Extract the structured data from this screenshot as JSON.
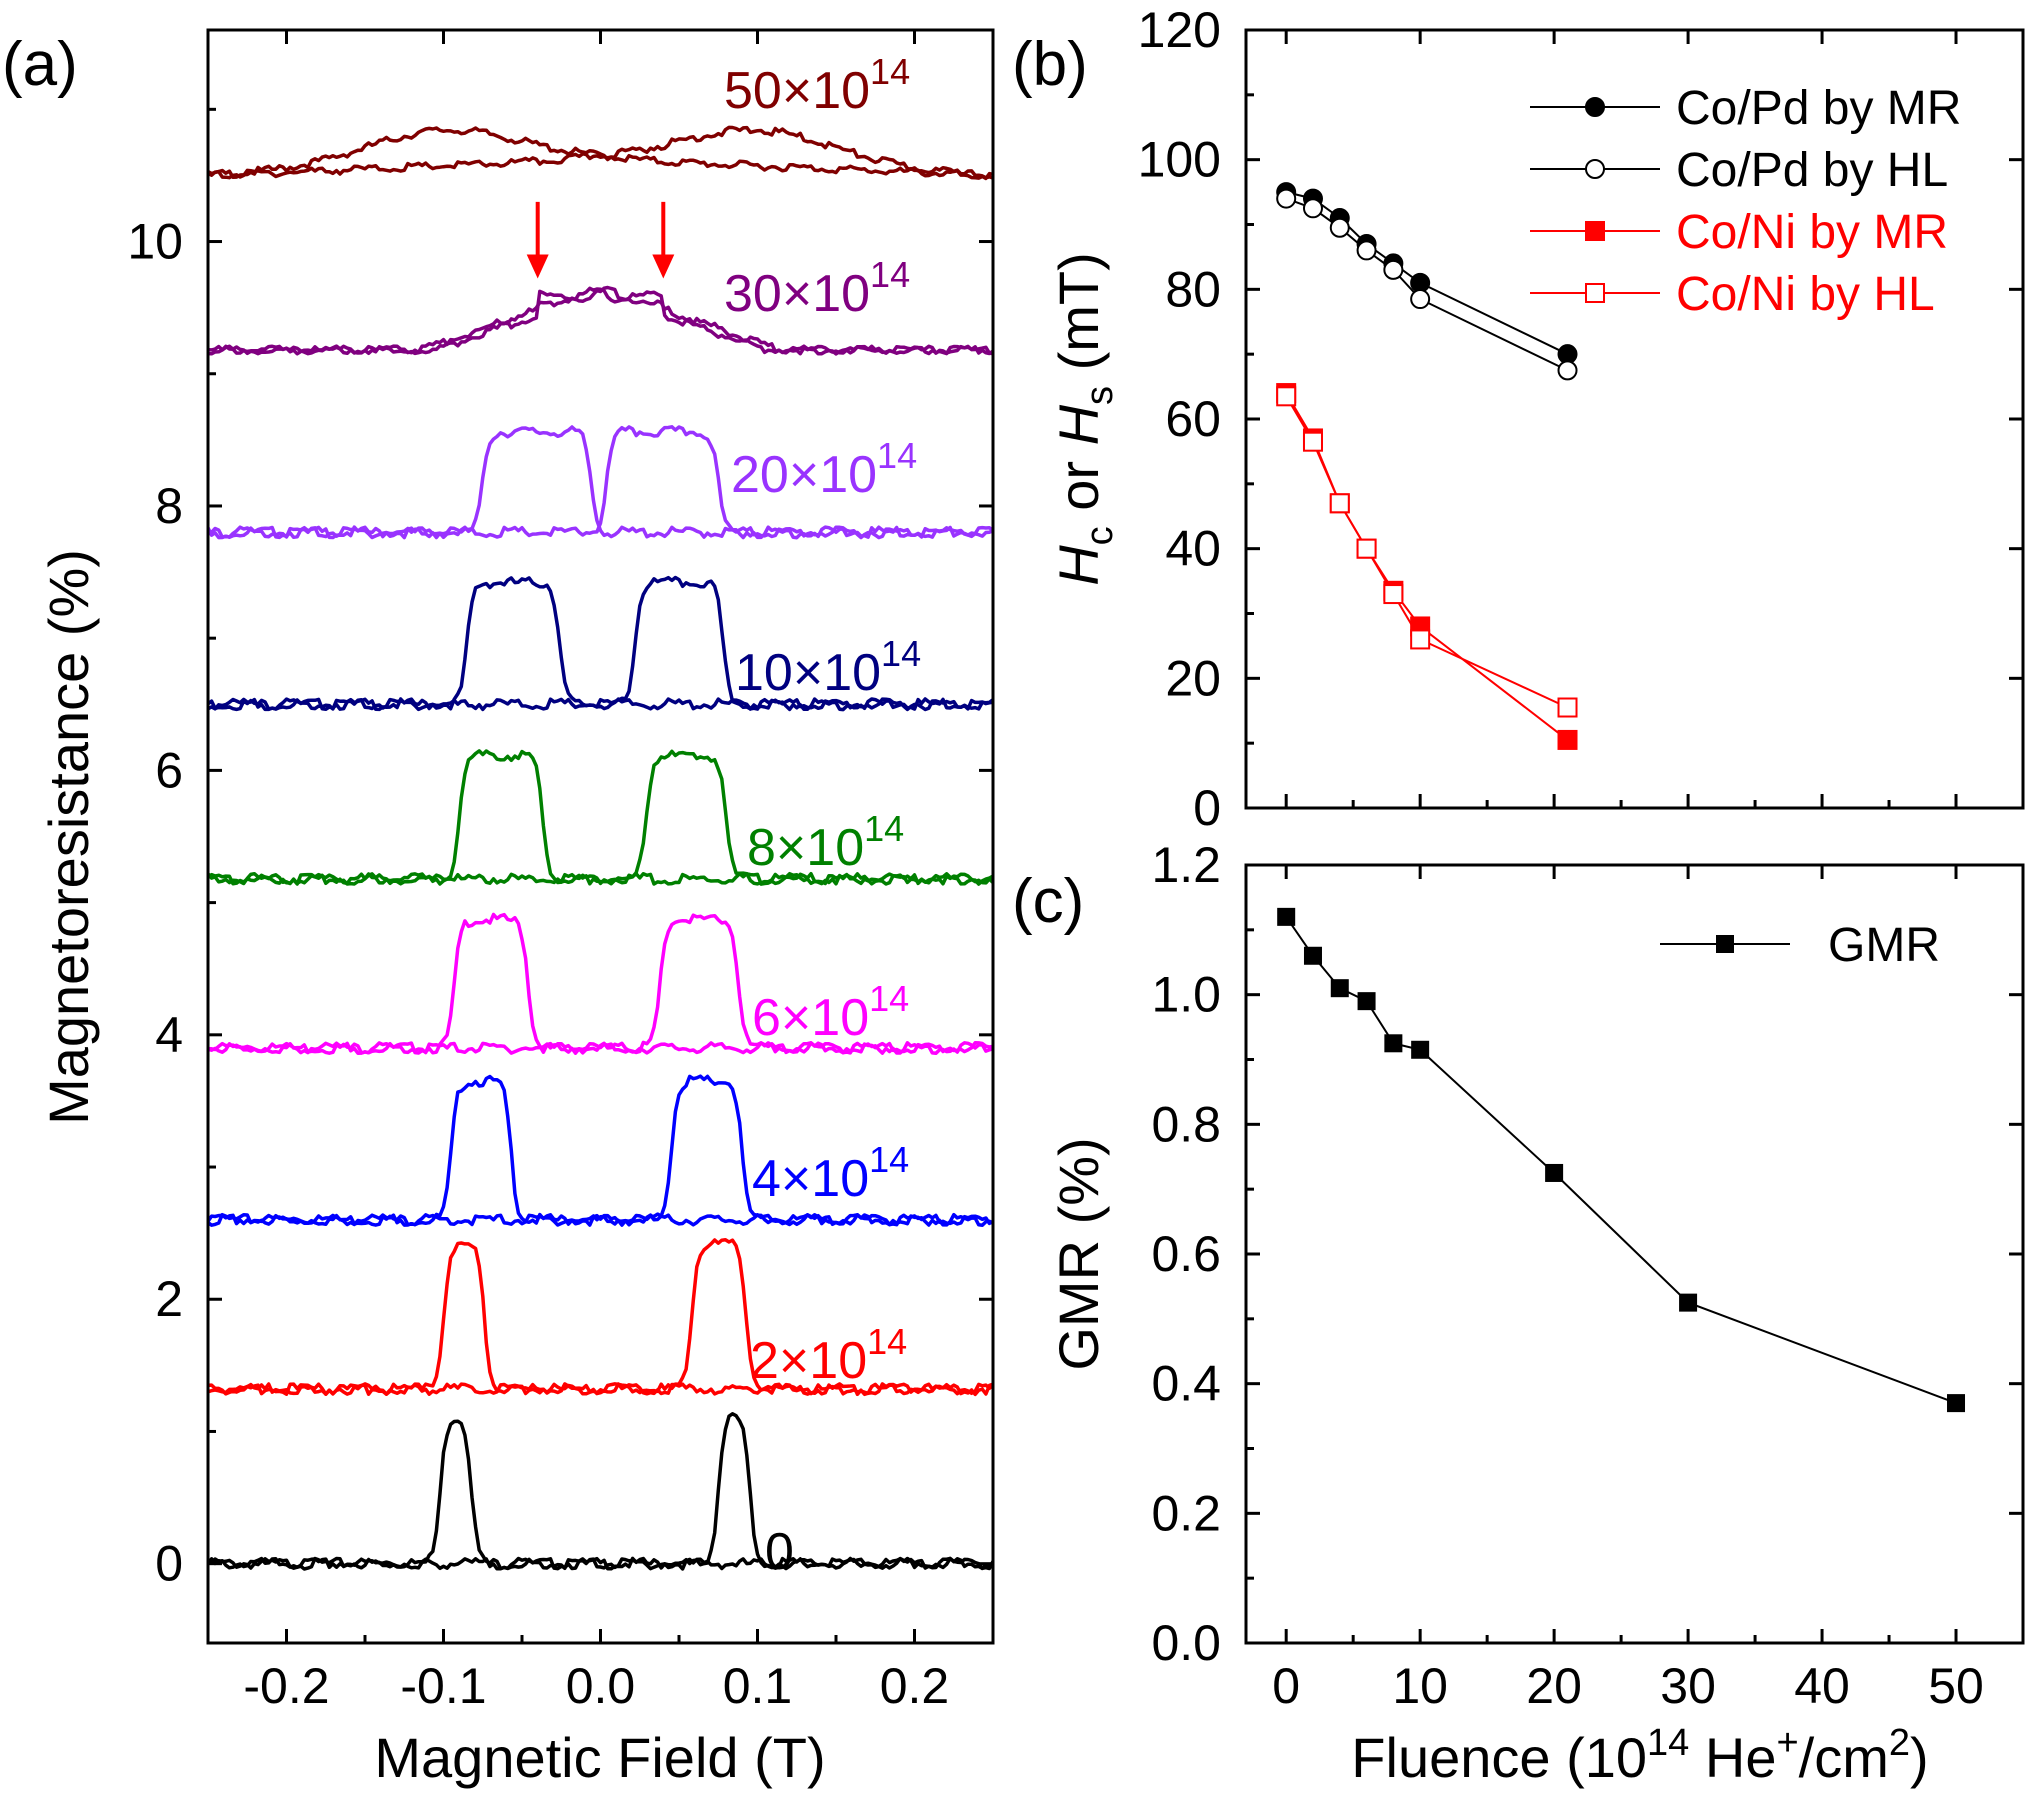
{
  "panel_labels": {
    "a": "(a)",
    "b": "(b)",
    "c": "(c)"
  },
  "chart_data": [
    {
      "id": "a",
      "type": "line",
      "xlabel": "Magnetic Field (T)",
      "ylabel": "Magnetoresistance (%)",
      "xlim": [
        -0.25,
        0.25
      ],
      "ylim": [
        -0.6,
        11.6
      ],
      "xticks": [
        -0.2,
        -0.1,
        0.0,
        0.1,
        0.2
      ],
      "xtick_labels": [
        "-0.2",
        "-0.1",
        "0.0",
        "0.1",
        "0.2"
      ],
      "yticks": [
        0,
        2,
        4,
        6,
        8,
        10
      ],
      "ytick_labels": [
        "0",
        "2",
        "4",
        "6",
        "8",
        "10"
      ],
      "grid": false,
      "series": [
        {
          "label_base": "0",
          "label_exp": "",
          "color": "#000000",
          "kind": "square",
          "offset": 0.0,
          "height": 1.12,
          "rise_left": -0.102,
          "fall_left": -0.082,
          "rise_right": 0.075,
          "fall_right": 0.095
        },
        {
          "label_base": "2×10",
          "label_exp": "14",
          "color": "#ff0000",
          "kind": "square",
          "offset": 1.32,
          "height": 1.1,
          "rise_left": -0.1,
          "fall_left": -0.074,
          "rise_right": 0.058,
          "fall_right": 0.093
        },
        {
          "label_base": "4×10",
          "label_exp": "14",
          "color": "#0000ff",
          "kind": "square",
          "offset": 2.6,
          "height": 1.05,
          "rise_left": -0.095,
          "fall_left": -0.057,
          "rise_right": 0.045,
          "fall_right": 0.09
        },
        {
          "label_base": "6×10",
          "label_exp": "14",
          "color": "#ff00ff",
          "kind": "square",
          "offset": 3.9,
          "height": 0.97,
          "rise_left": -0.093,
          "fall_left": -0.046,
          "rise_right": 0.038,
          "fall_right": 0.088
        },
        {
          "label_base": "8×10",
          "label_exp": "14",
          "color": "#008000",
          "kind": "square",
          "offset": 5.18,
          "height": 0.93,
          "rise_left": -0.09,
          "fall_left": -0.037,
          "rise_right": 0.029,
          "fall_right": 0.08
        },
        {
          "label_base": "10×10",
          "label_exp": "14",
          "color": "#000080",
          "kind": "square",
          "offset": 6.5,
          "height": 0.92,
          "rise_left": -0.085,
          "fall_left": -0.026,
          "rise_right": 0.022,
          "fall_right": 0.078
        },
        {
          "label_base": "20×10",
          "label_exp": "14",
          "color": "#9933ff",
          "kind": "square",
          "offset": 7.8,
          "height": 0.76,
          "rise_left": -0.075,
          "fall_left": -0.006,
          "rise_right": 0.004,
          "fall_right": 0.075
        },
        {
          "label_base": "30×10",
          "label_exp": "14",
          "color": "#800080",
          "kind": "peak",
          "offset": 9.18,
          "height": 0.47,
          "peak_left": -0.04,
          "peak_right": 0.04
        },
        {
          "label_base": "50×10",
          "label_exp": "14",
          "color": "#800000",
          "kind": "bump",
          "offset": 10.5,
          "height": 0.27,
          "peak_left": -0.1,
          "peak_right": 0.1
        }
      ],
      "annotations": [
        {
          "type": "arrow",
          "color": "#ff0000",
          "x": -0.04,
          "y_tip": 9.72,
          "y_tail": 10.3
        },
        {
          "type": "arrow",
          "color": "#ff0000",
          "x": 0.04,
          "y_tip": 9.72,
          "y_tail": 10.3
        }
      ]
    },
    {
      "id": "b",
      "type": "line",
      "xlabel": "",
      "ylabel": "H_c or H_s (mT)",
      "ylabel_parts": [
        "H",
        "c",
        " or ",
        "H",
        "s",
        " (mT)"
      ],
      "xlim": [
        -3,
        55
      ],
      "ylim": [
        0,
        120
      ],
      "xticks": [
        0,
        10,
        20,
        30,
        40,
        50
      ],
      "yticks": [
        0,
        20,
        40,
        60,
        80,
        100,
        120
      ],
      "ytick_labels": [
        "0",
        "20",
        "40",
        "60",
        "80",
        "100",
        "120"
      ],
      "grid": false,
      "legend_position": "top-right",
      "series": [
        {
          "name": "Co/Pd by MR",
          "color": "#000000",
          "marker": "circle",
          "fill": "filled",
          "x": [
            0,
            2,
            4,
            6,
            8,
            10,
            21
          ],
          "y": [
            95,
            94,
            91,
            87,
            84,
            81,
            70
          ]
        },
        {
          "name": "Co/Pd by HL",
          "color": "#000000",
          "marker": "circle",
          "fill": "open",
          "x": [
            0,
            2,
            4,
            6,
            8,
            10,
            21
          ],
          "y": [
            94,
            92.5,
            89.5,
            86,
            83,
            78.5,
            67.5
          ]
        },
        {
          "name": "Co/Ni by MR",
          "color": "#ff0000",
          "marker": "square",
          "fill": "filled",
          "x": [
            0,
            2,
            4,
            6,
            8,
            10,
            21
          ],
          "y": [
            64,
            57,
            47,
            40,
            33.5,
            28,
            10.5
          ]
        },
        {
          "name": "Co/Ni by HL",
          "color": "#ff0000",
          "marker": "square",
          "fill": "open",
          "x": [
            0,
            2,
            4,
            6,
            8,
            10,
            21
          ],
          "y": [
            63.5,
            56.5,
            47,
            40,
            33,
            26,
            15.5
          ]
        }
      ]
    },
    {
      "id": "c",
      "type": "line",
      "xlabel": "Fluence (10^14 He^+/cm^2)",
      "xlabel_parts": [
        "Fluence (10",
        "14",
        " He",
        "+",
        "/cm",
        "2",
        ")"
      ],
      "ylabel": "GMR (%)",
      "xlim": [
        -3,
        55
      ],
      "ylim": [
        0,
        1.2
      ],
      "xticks": [
        0,
        10,
        20,
        30,
        40,
        50
      ],
      "xtick_labels": [
        "0",
        "10",
        "20",
        "30",
        "40",
        "50"
      ],
      "yticks": [
        0,
        0.2,
        0.4,
        0.6,
        0.8,
        1.0,
        1.2
      ],
      "ytick_labels": [
        "0.0",
        "0.2",
        "0.4",
        "0.6",
        "0.8",
        "1.0",
        "1.2"
      ],
      "grid": false,
      "legend_position": "top-right",
      "series": [
        {
          "name": "GMR",
          "color": "#000000",
          "marker": "square",
          "fill": "filled",
          "x": [
            0,
            2,
            4,
            6,
            8,
            10,
            20,
            30,
            50
          ],
          "y": [
            1.12,
            1.06,
            1.01,
            0.99,
            0.925,
            0.915,
            0.725,
            0.525,
            0.37
          ]
        }
      ]
    }
  ]
}
